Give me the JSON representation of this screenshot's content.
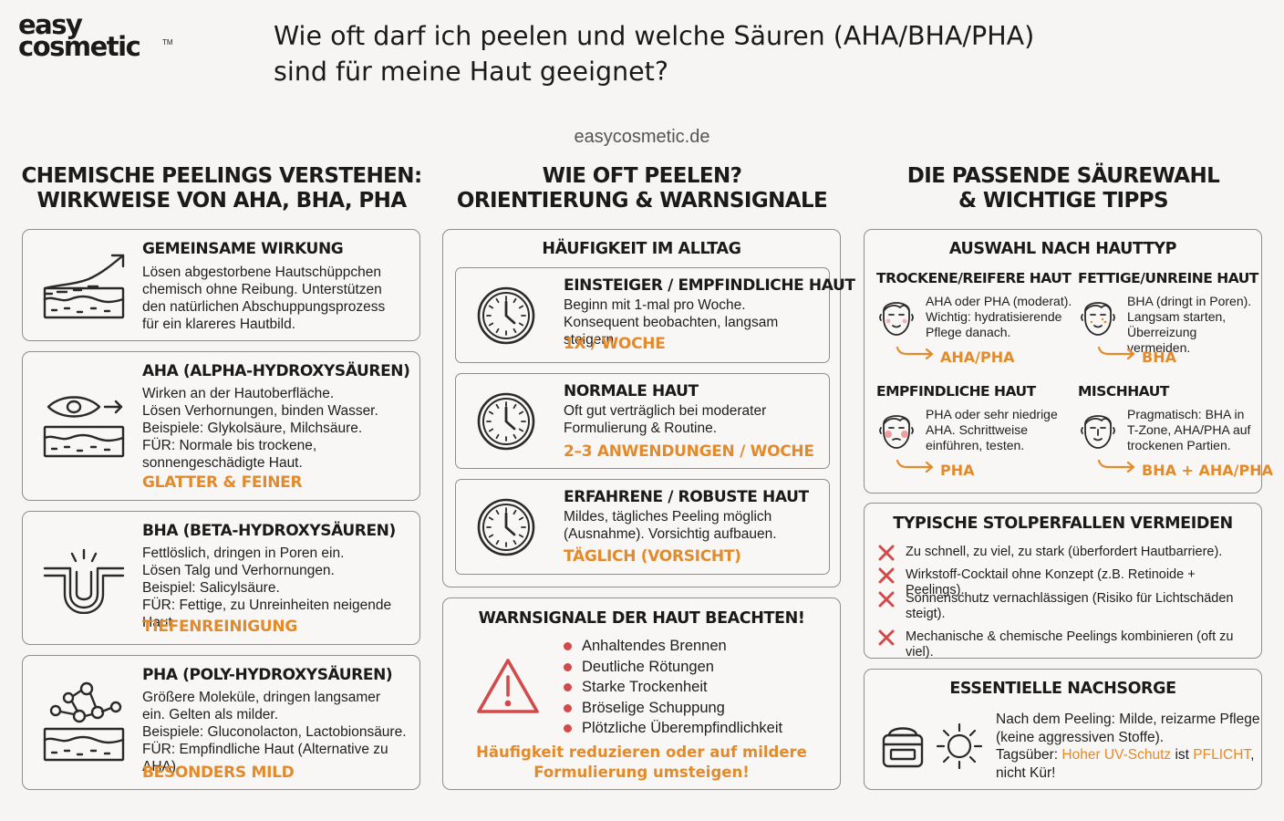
{
  "logo": {
    "line1": "easy",
    "line2": "cosmetic",
    "tm": "TM"
  },
  "title": {
    "line1": "Wie oft darf ich peelen und welche Säuren (AHA/BHA/PHA)",
    "line2": "sind für meine Haut geeignet?"
  },
  "website": "easycosmetic.de",
  "colors": {
    "accent": "#e38a2b",
    "warning_red": "#d24a4a",
    "border": "#8e8e8e",
    "background": "#f6f5f3"
  },
  "col1": {
    "heading_l1": "CHEMISCHE PEELINGS VERSTEHEN:",
    "heading_l2": "WIRKWEISE VON AHA, BHA, PHA",
    "cards": [
      {
        "icon": "skin-layer-arrow-icon",
        "title": "GEMEINSAME WIRKUNG",
        "lines": [
          "Lösen abgestorbene Hautschüppchen",
          "chemisch ohne Reibung. Unterstützen",
          "den natürlichen Abschuppungsprozess",
          "für ein klareres Hautbild."
        ],
        "tag": ""
      },
      {
        "icon": "eye-skin-layer-icon",
        "title": "AHA (ALPHA-HYDROXYSÄUREN)",
        "lines": [
          "Wirken an der Hautoberfläche.",
          "Lösen Verhornungen, binden Wasser.",
          "Beispiele: Glykolsäure, Milchsäure.",
          "FÜR: Normale bis trockene,",
          "sonnengeschädigte Haut."
        ],
        "tag": "GLATTER & FEINER"
      },
      {
        "icon": "pore-icon",
        "title": "BHA (BETA-HYDROXYSÄUREN)",
        "lines": [
          "Fettlöslich, dringen in Poren ein.",
          "Lösen Talg und Verhornungen.",
          "Beispiel: Salicylsäure.",
          "FÜR: Fettige, zu Unreinheiten neigende Haut."
        ],
        "tag": "TIEFENREINIGUNG"
      },
      {
        "icon": "molecule-skin-icon",
        "title": "PHA (POLY-HYDROXYSÄUREN)",
        "lines": [
          "Größere Moleküle, dringen langsamer",
          "ein. Gelten als milder.",
          "Beispiele: Gluconolacton, Lactobionsäure.",
          "FÜR: Empfindliche Haut (Alternative zu AHA)."
        ],
        "tag": "BESONDERS MILD"
      }
    ]
  },
  "col2": {
    "heading_l1": "WIE OFT PEELEN?",
    "heading_l2": "ORIENTIERUNG & WARNSIGNALE",
    "frequency": {
      "title": "HÄUFIGKEIT IM ALLTAG",
      "items": [
        {
          "icon": "clock-icon",
          "title": "EINSTEIGER / EMPFINDLICHE HAUT",
          "lines": [
            "Beginn mit 1-mal pro Woche.",
            "Konsequent beobachten, langsam steigern."
          ],
          "tag": "1X / WOCHE"
        },
        {
          "icon": "clock-icon",
          "title": "NORMALE HAUT",
          "lines": [
            "Oft gut verträglich bei moderater",
            "Formulierung & Routine."
          ],
          "tag": "2–3 ANWENDUNGEN / WOCHE"
        },
        {
          "icon": "clock-icon",
          "title": "ERFAHRENE / ROBUSTE HAUT",
          "lines": [
            "Mildes, tägliches Peeling möglich",
            "(Ausnahme). Vorsichtig aufbauen."
          ],
          "tag": "TÄGLICH (VORSICHT)"
        }
      ]
    },
    "warnings": {
      "title": "WARNSIGNALE DER HAUT BEACHTEN!",
      "icon": "warning-triangle-icon",
      "items": [
        "Anhaltendes Brennen",
        "Deutliche Rötungen",
        "Starke Trockenheit",
        "Bröselige Schuppung",
        "Plötzliche Überempfindlichkeit"
      ],
      "footer_l1": "Häufigkeit reduzieren oder auf mildere",
      "footer_l2": "Formulierung umsteigen!"
    }
  },
  "col3": {
    "heading_l1": "DIE PASSENDE SÄUREWAHL",
    "heading_l2": "& WICHTIGE TIPPS",
    "skin_types": {
      "title": "AUSWAHL NACH HAUTTYP",
      "items": [
        {
          "title": "TROCKENE/REIFERE HAUT",
          "icon": "dry-face-icon",
          "lines": [
            "AHA oder PHA (moderat).",
            "Wichtig: hydratisierende",
            "Pflege danach."
          ],
          "rec": "AHA/PHA"
        },
        {
          "title": "FETTIGE/UNREINE HAUT",
          "icon": "oily-face-icon",
          "lines": [
            "BHA (dringt in Poren).",
            "Langsam starten,",
            "Überreizung vermeiden."
          ],
          "rec": "BHA"
        },
        {
          "title": "EMPFINDLICHE HAUT",
          "icon": "sensitive-face-icon",
          "lines": [
            "PHA oder sehr niedrige",
            "AHA. Schrittweise",
            "einführen, testen."
          ],
          "rec": "PHA"
        },
        {
          "title": "MISCHHAUT",
          "icon": "combination-face-icon",
          "lines": [
            "Pragmatisch: BHA in",
            "T-Zone, AHA/PHA auf",
            "trockenen Partien."
          ],
          "rec": "BHA + AHA/PHA"
        }
      ]
    },
    "pitfalls": {
      "title": "TYPISCHE STOLPERFALLEN VERMEIDEN",
      "items": [
        [
          "Zu schnell, zu viel, zu stark (überfordert Hautbarriere)."
        ],
        [
          "Wirkstoff-Cocktail ohne Konzept (z.B. Retinoide + Peelings)."
        ],
        [
          "Sonnenschutz vernachlässigen (Risiko für Lichtschäden",
          "steigt)."
        ],
        [
          "Mechanische & chemische Peelings kombinieren (oft zu viel)."
        ]
      ]
    },
    "aftercare": {
      "title": "ESSENTIELLE NACHSORGE",
      "l1": "Nach dem Peeling: Milde, reizarme Pflege",
      "l2": "(keine aggressiven Stoffe).",
      "l3_a": "Tagsüber: ",
      "l3_b": "Hoher UV-Schutz",
      "l3_c": " ist ",
      "l3_d": "PFLICHT",
      "l3_e": ",",
      "l4": "nicht Kür!"
    }
  }
}
